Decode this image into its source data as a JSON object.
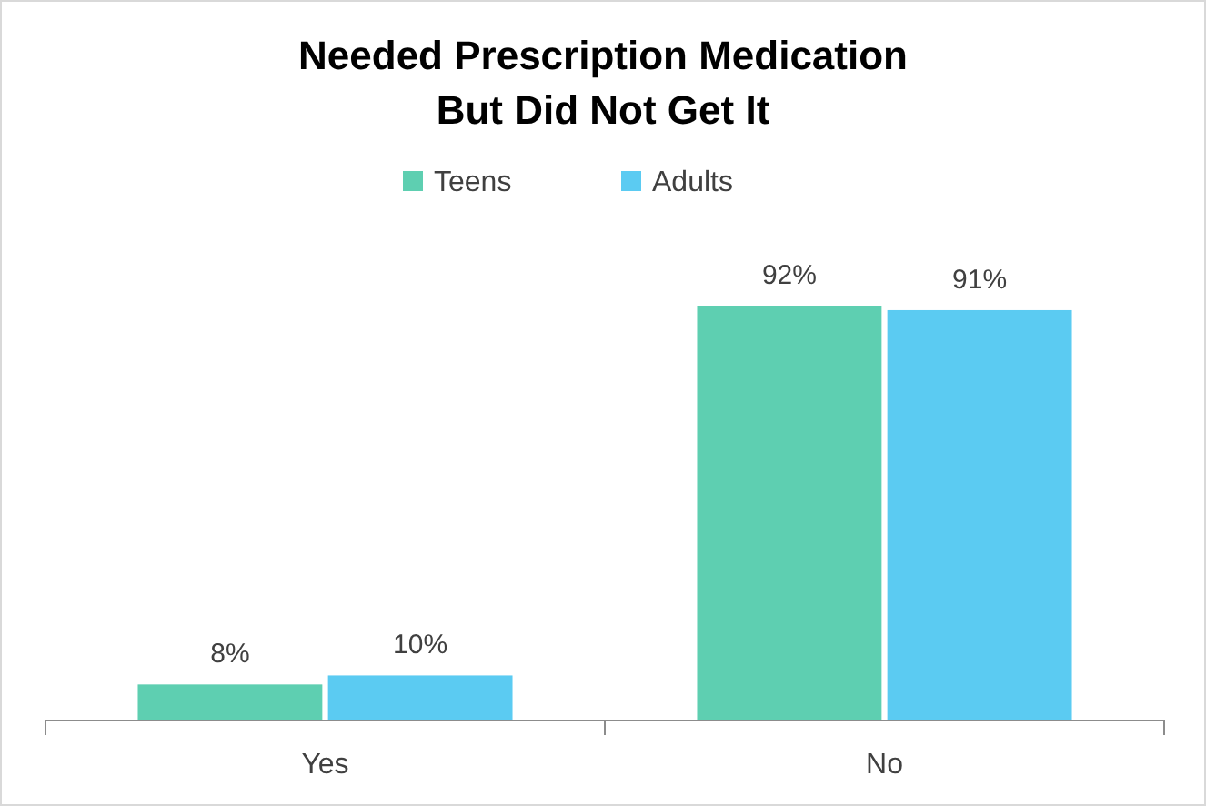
{
  "chart_data": {
    "type": "bar",
    "title": "Needed Prescription Medication\nBut Did Not Get It",
    "categories": [
      "Yes",
      "No"
    ],
    "series": [
      {
        "name": "Teens",
        "color": "#5ecfb1",
        "values": [
          8,
          92
        ],
        "value_labels": [
          "8%",
          "92%"
        ]
      },
      {
        "name": "Adults",
        "color": "#5bcbf2",
        "values": [
          10,
          91
        ],
        "value_labels": [
          "10%",
          "91%"
        ]
      }
    ],
    "legend": "top",
    "grid": false
  }
}
